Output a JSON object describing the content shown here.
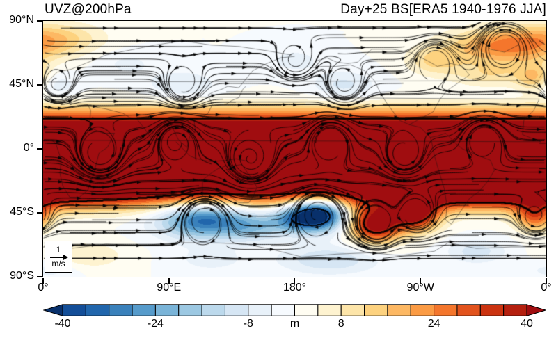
{
  "titles": {
    "left": "UVZ@200hPa",
    "right": "Day+25 BS[ERA5 1940-1976 JJA]"
  },
  "axes": {
    "y_ticks": [
      "90°N",
      "45°N",
      "0°",
      "45°S",
      "90°S"
    ],
    "x_ticks": [
      "0°",
      "90°E",
      "180°",
      "90°W",
      "0°"
    ]
  },
  "ref_vector": {
    "value": "1",
    "unit": "m/s"
  },
  "colorbar": {
    "tick_labels": [
      "-40",
      "-24",
      "-8",
      "8",
      "24",
      "40"
    ],
    "label": "m"
  },
  "chart_data": {
    "type": "heatmap",
    "title": "UVZ@200hPa — Day+25 BS[ERA5 1940-1976 JJA]",
    "projection": "equirectangular",
    "lon_range": [
      0,
      360
    ],
    "lat_range": [
      -90,
      90
    ],
    "x_tick_lons": [
      0,
      90,
      180,
      270,
      360
    ],
    "y_tick_lats": [
      90,
      45,
      0,
      -45,
      -90
    ],
    "x_tick_labels": [
      "0°",
      "90°E",
      "180°",
      "90°W",
      "0°"
    ],
    "y_tick_labels": [
      "90°N",
      "45°N",
      "0°",
      "45°S",
      "90°S"
    ],
    "units": "m",
    "colorbar": {
      "levels": [
        -40,
        -36,
        -32,
        -28,
        -24,
        -20,
        -16,
        -12,
        -8,
        -4,
        0,
        4,
        8,
        12,
        16,
        20,
        24,
        28,
        32,
        36,
        40
      ],
      "tick_values": [
        -40,
        -24,
        -8,
        8,
        24,
        40
      ],
      "colors": [
        "#08306B",
        "#134E98",
        "#2166AC",
        "#3A81BB",
        "#569BCB",
        "#7AB4D8",
        "#9CC8E2",
        "#BCD9EC",
        "#D6E6F4",
        "#E8F1F9",
        "#F6FAFE",
        "#FFFDF2",
        "#FEF3D0",
        "#FDE5A9",
        "#FDD27F",
        "#FDB863",
        "#FB9B44",
        "#F4762C",
        "#E2531D",
        "#CB3310",
        "#B5200F",
        "#A00D10"
      ]
    },
    "field": {
      "bands": [
        {
          "lat": -6,
          "sigma": 27,
          "amp": 60,
          "power": 4
        }
      ],
      "blobs": [
        {
          "lon": 115,
          "lat": -50,
          "slon": 22,
          "slat": 9,
          "amp": -34
        },
        {
          "lon": 150,
          "lat": -55,
          "slon": 14,
          "slat": 7,
          "amp": -14
        },
        {
          "lon": 176,
          "lat": -50,
          "slon": 12,
          "slat": 7,
          "amp": -16
        },
        {
          "lon": 196,
          "lat": -46,
          "slon": 14,
          "slat": 8,
          "amp": -52
        },
        {
          "lon": 238,
          "lat": -53,
          "slon": 13,
          "slat": 9,
          "amp": 45
        },
        {
          "lon": 267,
          "lat": -47,
          "slon": 12,
          "slat": 8,
          "amp": 38
        },
        {
          "lon": 352,
          "lat": -48,
          "slon": 10,
          "slat": 7,
          "amp": 26
        },
        {
          "lon": 295,
          "lat": -34,
          "slon": 50,
          "slat": 8,
          "amp": 14
        },
        {
          "lon": 20,
          "lat": -33,
          "slon": 45,
          "slat": 8,
          "amp": 10
        },
        {
          "lon": 330,
          "lat": 72,
          "slon": 28,
          "slat": 9,
          "amp": 24
        },
        {
          "lon": 352,
          "lat": 50,
          "slon": 9,
          "slat": 7,
          "amp": 14
        },
        {
          "lon": 8,
          "lat": 78,
          "slon": 25,
          "slat": 8,
          "amp": 12
        },
        {
          "lon": 100,
          "lat": 45,
          "slon": 18,
          "slat": 7,
          "amp": -8
        },
        {
          "lon": 10,
          "lat": 45,
          "slon": 10,
          "slat": 6,
          "amp": -7
        },
        {
          "lon": 215,
          "lat": 45,
          "slon": 16,
          "slat": 7,
          "amp": -9
        },
        {
          "lon": 180,
          "lat": 62,
          "slon": 14,
          "slat": 6,
          "amp": -6
        },
        {
          "lon": 280,
          "lat": 62,
          "slon": 14,
          "slat": 7,
          "amp": 12
        },
        {
          "lon": 320,
          "lat": 52,
          "slon": 20,
          "slat": 6,
          "amp": 10
        },
        {
          "lon": 60,
          "lat": 60,
          "slon": 16,
          "slat": 7,
          "amp": -5
        },
        {
          "lon": 205,
          "lat": -78,
          "slon": 25,
          "slat": 7,
          "amp": -12
        },
        {
          "lon": 310,
          "lat": -72,
          "slon": 15,
          "slat": 6,
          "amp": -10
        },
        {
          "lon": 30,
          "lat": -75,
          "slon": 20,
          "slat": 7,
          "amp": 8
        },
        {
          "lon": 120,
          "lat": -78,
          "slon": 18,
          "slat": 6,
          "amp": -6
        },
        {
          "lon": 5,
          "lat": -85,
          "slon": 15,
          "slat": 5,
          "amp": -6
        }
      ]
    },
    "flow": {
      "base_u": 1.0,
      "seed_lon_step": 32,
      "seed_lat_step": 9,
      "vortices": [
        {
          "lon": 40,
          "lat": -4,
          "s": 1.0,
          "r": 10
        },
        {
          "lon": 95,
          "lat": 6,
          "s": -0.9,
          "r": 9
        },
        {
          "lon": 148,
          "lat": -8,
          "s": 1.1,
          "r": 10
        },
        {
          "lon": 205,
          "lat": 6,
          "s": -1.0,
          "r": 9
        },
        {
          "lon": 258,
          "lat": -5,
          "s": 0.9,
          "r": 9
        },
        {
          "lon": 315,
          "lat": 7,
          "s": -0.9,
          "r": 9
        },
        {
          "lon": 115,
          "lat": -50,
          "s": -1.5,
          "r": 9
        },
        {
          "lon": 196,
          "lat": -46,
          "s": -1.6,
          "r": 9
        },
        {
          "lon": 238,
          "lat": -53,
          "s": 1.5,
          "r": 9
        },
        {
          "lon": 267,
          "lat": -47,
          "s": 1.4,
          "r": 8
        },
        {
          "lon": 352,
          "lat": -48,
          "s": 1.3,
          "r": 7
        },
        {
          "lon": 330,
          "lat": 72,
          "s": -1.4,
          "r": 10
        },
        {
          "lon": 180,
          "lat": 62,
          "s": 1.0,
          "r": 8
        },
        {
          "lon": 100,
          "lat": 45,
          "s": 1.0,
          "r": 8
        },
        {
          "lon": 215,
          "lat": 45,
          "s": 1.0,
          "r": 8
        },
        {
          "lon": 10,
          "lat": 45,
          "s": 0.9,
          "r": 7
        },
        {
          "lon": 280,
          "lat": 62,
          "s": -1.1,
          "r": 8
        }
      ]
    },
    "coastlines": [
      [
        [
          355,
          35
        ],
        [
          3,
          37
        ],
        [
          10,
          33
        ],
        [
          20,
          32
        ],
        [
          32,
          31
        ],
        [
          34,
          27
        ],
        [
          33,
          15
        ],
        [
          43,
          11
        ],
        [
          51,
          11
        ],
        [
          46,
          1
        ],
        [
          40,
          -3
        ],
        [
          36,
          -18
        ],
        [
          32,
          -29
        ],
        [
          26,
          -34
        ],
        [
          19,
          -34
        ],
        [
          14,
          -26
        ],
        [
          12,
          -17
        ],
        [
          13,
          -8
        ],
        [
          9,
          4
        ],
        [
          6,
          6
        ],
        [
          356,
          5
        ],
        [
          343,
          10
        ],
        [
          344,
          20
        ],
        [
          351,
          27
        ],
        [
          355,
          35
        ]
      ],
      [
        [
          350,
          44
        ],
        [
          355,
          48
        ],
        [
          3,
          47
        ],
        [
          10,
          54
        ],
        [
          20,
          56
        ],
        [
          30,
          60
        ],
        [
          45,
          66
        ],
        [
          60,
          69
        ],
        [
          80,
          73
        ],
        [
          100,
          76
        ],
        [
          120,
          73
        ],
        [
          140,
          72
        ],
        [
          160,
          69
        ],
        [
          178,
          66
        ]
      ],
      [
        [
          34,
          30
        ],
        [
          45,
          28
        ],
        [
          57,
          25
        ],
        [
          62,
          22
        ],
        [
          67,
          21
        ],
        [
          72,
          15
        ],
        [
          77,
          8
        ],
        [
          80,
          14
        ],
        [
          88,
          21
        ],
        [
          92,
          16
        ],
        [
          97,
          6
        ],
        [
          103,
          1
        ],
        [
          105,
          9
        ],
        [
          109,
          12
        ],
        [
          108,
          20
        ],
        [
          114,
          22
        ],
        [
          118,
          25
        ],
        [
          121,
          31
        ],
        [
          118,
          38
        ],
        [
          122,
          40
        ],
        [
          128,
          42
        ],
        [
          132,
          44
        ],
        [
          140,
          43
        ],
        [
          150,
          55
        ],
        [
          160,
          60
        ],
        [
          170,
          64
        ],
        [
          180,
          65
        ]
      ],
      [
        [
          130,
          31
        ],
        [
          135,
          34
        ],
        [
          140,
          36
        ],
        [
          143,
          42
        ],
        [
          145,
          44
        ]
      ],
      [
        [
          95,
          5
        ],
        [
          100,
          0
        ],
        [
          105,
          -5
        ],
        [
          110,
          -7
        ],
        [
          115,
          -8
        ],
        [
          120,
          -9
        ],
        [
          132,
          -8
        ],
        [
          138,
          -7
        ],
        [
          143,
          -8
        ],
        [
          147,
          -9
        ]
      ],
      [
        [
          114,
          -22
        ],
        [
          114,
          -33
        ],
        [
          118,
          -35
        ],
        [
          125,
          -32
        ],
        [
          132,
          -32
        ],
        [
          136,
          -35
        ],
        [
          140,
          -38
        ],
        [
          147,
          -38
        ],
        [
          150,
          -34
        ],
        [
          153,
          -27
        ],
        [
          150,
          -22
        ],
        [
          145,
          -15
        ],
        [
          142,
          -11
        ],
        [
          136,
          -12
        ],
        [
          131,
          -12
        ],
        [
          125,
          -14
        ],
        [
          119,
          -18
        ],
        [
          114,
          -22
        ]
      ],
      [
        [
          167,
          -45
        ],
        [
          171,
          -42
        ],
        [
          174,
          -38
        ],
        [
          178,
          -37
        ]
      ],
      [
        [
          192,
          57
        ],
        [
          196,
          62
        ],
        [
          203,
          64
        ],
        [
          210,
          61
        ],
        [
          218,
          60
        ],
        [
          225,
          61
        ],
        [
          235,
          70
        ],
        [
          250,
          70
        ],
        [
          262,
          68
        ],
        [
          275,
          62
        ],
        [
          282,
          58
        ],
        [
          292,
          60
        ],
        [
          300,
          58
        ],
        [
          305,
          52
        ],
        [
          295,
          45
        ],
        [
          289,
          41
        ],
        [
          284,
          35
        ],
        [
          279,
          26
        ],
        [
          262,
          17
        ],
        [
          255,
          20
        ],
        [
          246,
          32
        ],
        [
          242,
          38
        ],
        [
          237,
          48
        ],
        [
          230,
          55
        ],
        [
          220,
          59
        ],
        [
          210,
          58
        ],
        [
          200,
          58
        ],
        [
          192,
          57
        ]
      ],
      [
        [
          262,
          17
        ],
        [
          270,
          15
        ],
        [
          277,
          8
        ],
        [
          282,
          9
        ],
        [
          288,
          11
        ],
        [
          295,
          4
        ],
        [
          300,
          0
        ],
        [
          312,
          -5
        ],
        [
          320,
          -8
        ],
        [
          323,
          -15
        ],
        [
          318,
          -23
        ],
        [
          312,
          -30
        ],
        [
          305,
          -35
        ],
        [
          298,
          -45
        ],
        [
          292,
          -53
        ],
        [
          288,
          -50
        ],
        [
          289,
          -40
        ],
        [
          287,
          -28
        ],
        [
          283,
          -15
        ],
        [
          280,
          -5
        ],
        [
          278,
          5
        ],
        [
          277,
          8
        ]
      ],
      [
        [
          316,
          83
        ],
        [
          330,
          82
        ],
        [
          342,
          80
        ],
        [
          340,
          73
        ],
        [
          330,
          68
        ],
        [
          320,
          70
        ],
        [
          314,
          76
        ],
        [
          316,
          83
        ]
      ],
      [
        [
          355,
          50
        ],
        [
          358,
          54
        ],
        [
          356,
          58
        ]
      ],
      [
        [
          0,
          -69
        ],
        [
          20,
          -70
        ],
        [
          45,
          -67
        ],
        [
          70,
          -68
        ],
        [
          95,
          -66
        ],
        [
          120,
          -66
        ],
        [
          145,
          -67
        ],
        [
          165,
          -71
        ],
        [
          185,
          -76
        ],
        [
          210,
          -74
        ],
        [
          235,
          -73
        ],
        [
          255,
          -75
        ],
        [
          280,
          -72
        ],
        [
          290,
          -66
        ],
        [
          310,
          -70
        ],
        [
          335,
          -69
        ],
        [
          360,
          -69
        ]
      ]
    ]
  }
}
